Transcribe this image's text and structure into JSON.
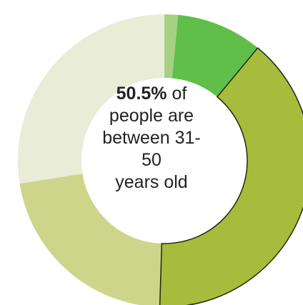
{
  "chart_data": {
    "type": "pie",
    "variant": "donut",
    "slices": [
      {
        "value": 1.5,
        "color": "#a4d184"
      },
      {
        "value": 9.5,
        "color": "#5fbf4a"
      },
      {
        "value": 39.5,
        "color": "#a7bb3c"
      },
      {
        "value": 22.0,
        "color": "#cdd58b"
      },
      {
        "value": 27.5,
        "color": "#e9ecd7"
      }
    ],
    "center_label": {
      "highlight": "50.5%",
      "text_line1": "of",
      "text_line2": "people are",
      "text_line3": "between 31-",
      "text_line4": "50",
      "text_line5": "years old"
    }
  }
}
